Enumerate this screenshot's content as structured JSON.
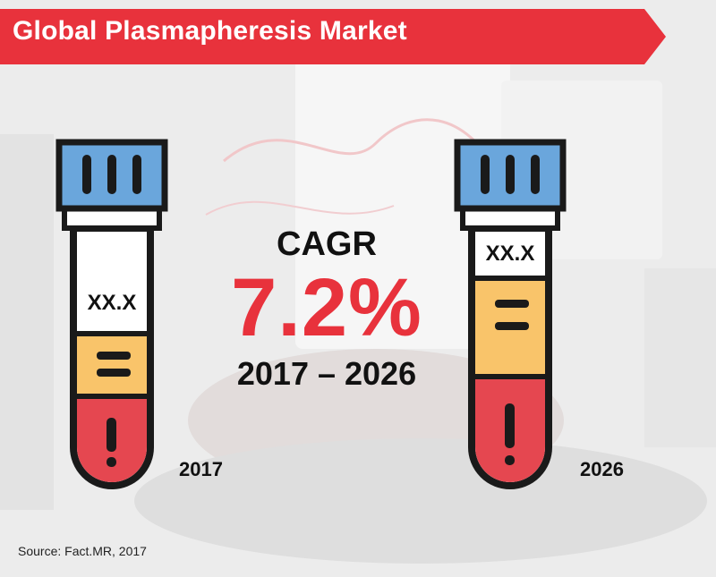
{
  "title": "Global Plasmapheresis Market",
  "cagr": {
    "label": "CAGR",
    "value": "7.2%",
    "period": "2017 – 2026"
  },
  "tubes": [
    {
      "year": "2017",
      "value": "XX.X"
    },
    {
      "year": "2026",
      "value": "XX.X"
    }
  ],
  "source": "Source: Fact.MR, 2017",
  "colors": {
    "accent_red": "#e8323c",
    "cap_blue": "#6aa6dc",
    "tube_yellow": "#f9c46a",
    "tube_red": "#e54750",
    "outline": "#1a1a1a"
  }
}
